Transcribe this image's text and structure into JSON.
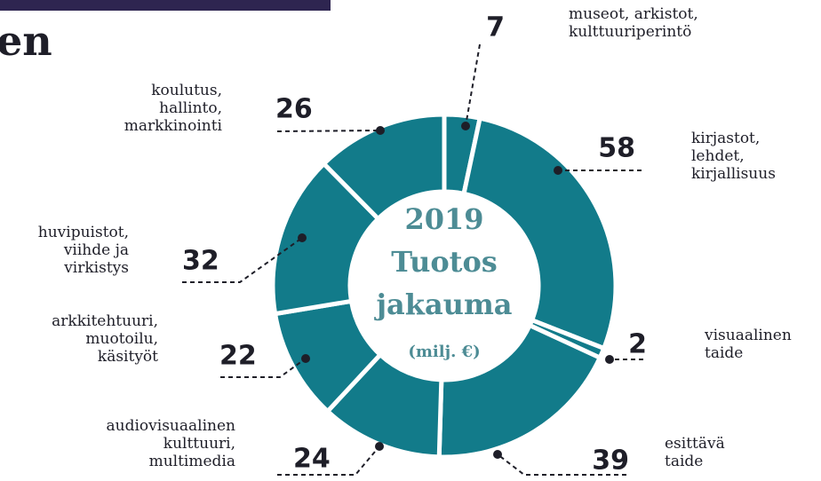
{
  "heading": "en",
  "chart_data": {
    "type": "donut",
    "center_text": [
      "2019",
      "Tuotos",
      "jakauma",
      "(milj. €)"
    ],
    "categories": [
      "museot, arkistot,\nkulttuuriperintö",
      "kirjastot,\nlehdet,\nkirjallisuus",
      "visuaalinen\ntaide",
      "esittävä\ntaide",
      "audiovisuaalinen\nkulttuuri,\nmultimedia",
      "arkkitehtuuri,\nmuotoilu,\nkäsityöt",
      "huvipuistot,\nviihde ja\nvirkistys",
      "koulutus,\nhallinto,\nmarkkinointi"
    ],
    "values": [
      7,
      58,
      2,
      39,
      24,
      22,
      32,
      26
    ],
    "color": "#127b8a"
  }
}
